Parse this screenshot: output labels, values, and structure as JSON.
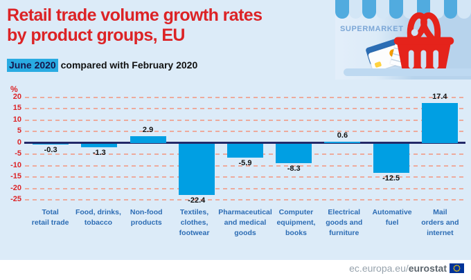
{
  "header": {
    "title_line1": "Retail trade volume growth rates",
    "title_line2": "by product groups, EU",
    "subtitle_highlight": "June 2020",
    "subtitle_rest": " compared with February 2020"
  },
  "illustration": {
    "sign_text": "SUPERMARKET",
    "icons": [
      "awning-icon",
      "shopping-basket-icon",
      "credit-card-icon",
      "receipt-icon"
    ],
    "colors": {
      "basket_red": "#e5231b",
      "awning_blue": "#51abdf",
      "sign_blue": "#7ba6d6"
    }
  },
  "chart_data": {
    "type": "bar",
    "title": "Retail trade volume growth rates by product groups, EU",
    "subtitle": "June 2020 compared with February 2020",
    "unit_label": "%",
    "categories": [
      "Total\nretail trade",
      "Food, drinks,\ntobacco",
      "Non-food\nproducts",
      "Textiles,\nclothes,\nfootwear",
      "Pharmaceutical\nand medical\ngoods",
      "Computer\nequipment,\nbooks",
      "Electrical\ngoods and\nfurniture",
      "Automative\nfuel",
      "Mail\norders and\ninternet"
    ],
    "values": [
      -0.3,
      -1.3,
      2.9,
      -22.4,
      -5.9,
      -8.3,
      0.6,
      -12.5,
      17.4
    ],
    "yticks": [
      20,
      15,
      10,
      5,
      0,
      -5,
      -10,
      -15,
      -20,
      -25
    ],
    "ylim": [
      -27,
      22
    ],
    "grid": "dashed-horizontal-red",
    "legend": "none",
    "colors": {
      "bar": "#009fe3",
      "zero_line": "#232968",
      "gridline": "#edaa9c",
      "tick_text": "#dc2326",
      "category_text": "#2c6cb4",
      "value_text": "#111111",
      "background": "#dcebf8"
    }
  },
  "footer": {
    "url_prefix": "ec.europa.eu/",
    "url_bold": "eurostat",
    "logo": "eu-flag-icon"
  }
}
